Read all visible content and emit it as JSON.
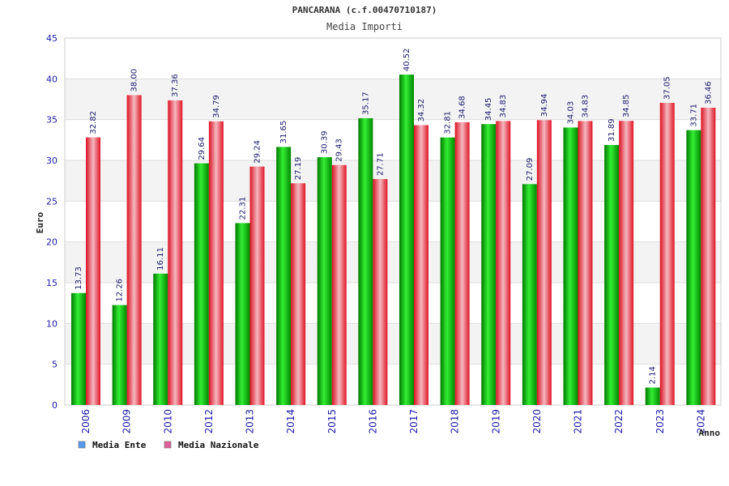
{
  "chart_data": {
    "type": "bar",
    "title": "PANCARANA (c.f.00470710187)",
    "subtitle": "Media Importi",
    "xlabel": "Anno",
    "ylabel": "Euro",
    "ylim": [
      0,
      45
    ],
    "yticks": [
      0,
      5,
      10,
      15,
      20,
      25,
      30,
      35,
      40,
      45
    ],
    "categories": [
      "2006",
      "2009",
      "2010",
      "2012",
      "2013",
      "2014",
      "2015",
      "2016",
      "2017",
      "2018",
      "2019",
      "2020",
      "2021",
      "2022",
      "2023",
      "2024"
    ],
    "series": [
      {
        "name": "Media Ente",
        "color": "#00c000",
        "legend_color": "#5599ee",
        "values": [
          13.73,
          12.26,
          16.11,
          29.64,
          22.31,
          31.65,
          30.39,
          35.17,
          40.52,
          32.81,
          34.45,
          27.09,
          34.03,
          31.89,
          2.14,
          33.71
        ]
      },
      {
        "name": "Media Nazionale",
        "color": "#ee1c2c",
        "legend_color": "#e0609a",
        "values": [
          32.82,
          38.0,
          37.36,
          34.79,
          29.24,
          27.19,
          29.43,
          27.71,
          34.32,
          34.68,
          34.83,
          34.94,
          34.83,
          34.85,
          37.05,
          36.46
        ]
      }
    ],
    "grid": true,
    "legend": "bottom-left"
  }
}
